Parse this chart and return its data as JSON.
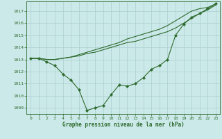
{
  "xlabel": "Graphe pression niveau de la mer (hPa)",
  "xlim": [
    -0.5,
    23.5
  ],
  "ylim": [
    1008.5,
    1017.8
  ],
  "yticks": [
    1009,
    1010,
    1011,
    1012,
    1013,
    1014,
    1015,
    1016,
    1017
  ],
  "xticks": [
    0,
    1,
    2,
    3,
    4,
    5,
    6,
    7,
    8,
    9,
    10,
    11,
    12,
    13,
    14,
    15,
    16,
    17,
    18,
    19,
    20,
    21,
    22,
    23
  ],
  "bg_color": "#cce9e9",
  "line_color": "#2d6a2d",
  "grid_color": "#aacfcf",
  "series1_x": [
    0,
    1,
    2,
    3,
    4,
    5,
    6,
    7,
    8,
    9,
    10,
    11,
    12,
    13,
    14,
    15,
    16,
    17,
    18,
    19,
    20,
    21,
    22,
    23
  ],
  "series1_y": [
    1013.1,
    1013.1,
    1013.0,
    1013.0,
    1013.1,
    1013.2,
    1013.3,
    1013.5,
    1013.6,
    1013.8,
    1014.0,
    1014.2,
    1014.4,
    1014.5,
    1014.7,
    1014.9,
    1015.1,
    1015.3,
    1015.6,
    1016.0,
    1016.4,
    1016.8,
    1017.1,
    1017.5
  ],
  "series2_x": [
    0,
    1,
    2,
    3,
    4,
    5,
    6,
    7,
    8,
    9,
    10,
    11,
    12,
    13,
    14,
    15,
    16,
    17,
    18,
    19,
    20,
    21,
    22,
    23
  ],
  "series2_y": [
    1013.1,
    1013.1,
    1013.0,
    1013.0,
    1013.1,
    1013.2,
    1013.4,
    1013.6,
    1013.8,
    1014.0,
    1014.2,
    1014.4,
    1014.7,
    1014.9,
    1015.1,
    1015.3,
    1015.5,
    1015.8,
    1016.2,
    1016.6,
    1017.0,
    1017.2,
    1017.3,
    1017.6
  ],
  "series3_x": [
    0,
    1,
    2,
    3,
    4,
    5,
    6,
    7,
    8,
    9,
    10,
    11,
    12,
    13,
    14,
    15,
    16,
    17,
    18,
    19,
    20,
    21,
    22,
    23
  ],
  "series3_y": [
    1013.1,
    1013.1,
    1012.8,
    1012.5,
    1011.8,
    1011.3,
    1010.5,
    1008.8,
    1009.0,
    1009.2,
    1010.1,
    1010.9,
    1010.8,
    1011.0,
    1011.5,
    1012.2,
    1012.5,
    1013.0,
    1015.0,
    1015.9,
    1016.5,
    1016.8,
    1017.2,
    1017.6
  ]
}
